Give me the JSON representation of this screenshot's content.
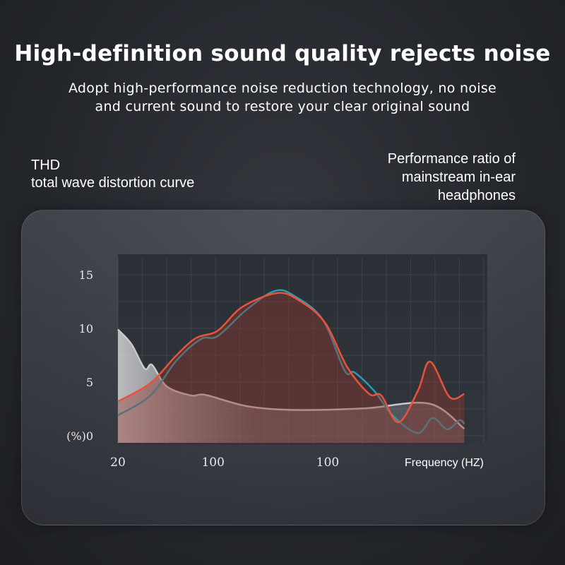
{
  "header": {
    "title": "High-definition sound quality rejects noise",
    "subtitle_line1": "Adopt high-performance noise reduction technology, no noise",
    "subtitle_line2": "and current sound to restore your clear original sound"
  },
  "labels": {
    "left_line1": "THD",
    "left_line2": "total wave distortion curve",
    "right_line1": "Performance ratio of",
    "right_line2": "mainstream in-ear",
    "right_line3": "headphones"
  },
  "chart_data": {
    "type": "line",
    "xlabel": "Frequency (HZ)",
    "ylabel": "(%)",
    "ylim": [
      0,
      15
    ],
    "yticks": [
      {
        "value": 0,
        "label": "(%)0"
      },
      {
        "value": 5,
        "label": "5"
      },
      {
        "value": 10,
        "label": "10"
      },
      {
        "value": 15,
        "label": "15"
      }
    ],
    "xticks": [
      {
        "value": 0,
        "label": "20"
      },
      {
        "value": 3.9,
        "label": "100"
      },
      {
        "value": 8.6,
        "label": "100"
      }
    ],
    "xlim": [
      0,
      15
    ],
    "grid": true,
    "series": [
      {
        "color": "#c9c9cc",
        "fill": true,
        "x": [
          0,
          0.55,
          1.1,
          1.4,
          2.0,
          3.0,
          3.6,
          5.3,
          7.25,
          10.1,
          12.75,
          14.2
        ],
        "y": [
          9.9,
          8.55,
          6.25,
          6.6,
          4.6,
          3.75,
          3.8,
          2.75,
          2.4,
          2.55,
          3.0,
          0.65
        ]
      },
      {
        "color": "#2f9bb0",
        "fill": false,
        "x": [
          0,
          1.33,
          2.4,
          3.4,
          4.1,
          5.3,
          6.45,
          7.25,
          8.4,
          9.3,
          9.7,
          10.5,
          11.3,
          12.3,
          12.9,
          13.5,
          14.0,
          14.2
        ],
        "y": [
          1.9,
          3.75,
          7.0,
          9.0,
          9.3,
          11.8,
          13.5,
          13.0,
          10.8,
          6.05,
          5.9,
          4.2,
          1.8,
          0.25,
          1.65,
          0.6,
          1.45,
          1.1
        ]
      },
      {
        "color": "#e8533c",
        "fill": true,
        "x": [
          0,
          1.33,
          2.4,
          3.2,
          4.1,
          5.1,
          6.55,
          7.5,
          8.5,
          9.4,
          10.3,
          10.8,
          11.5,
          12.3,
          12.8,
          13.6,
          14.2
        ],
        "y": [
          3.2,
          4.9,
          7.5,
          9.1,
          9.8,
          12.0,
          13.3,
          12.5,
          10.5,
          6.4,
          3.9,
          3.75,
          1.25,
          4.2,
          6.9,
          3.6,
          3.9
        ]
      }
    ]
  }
}
